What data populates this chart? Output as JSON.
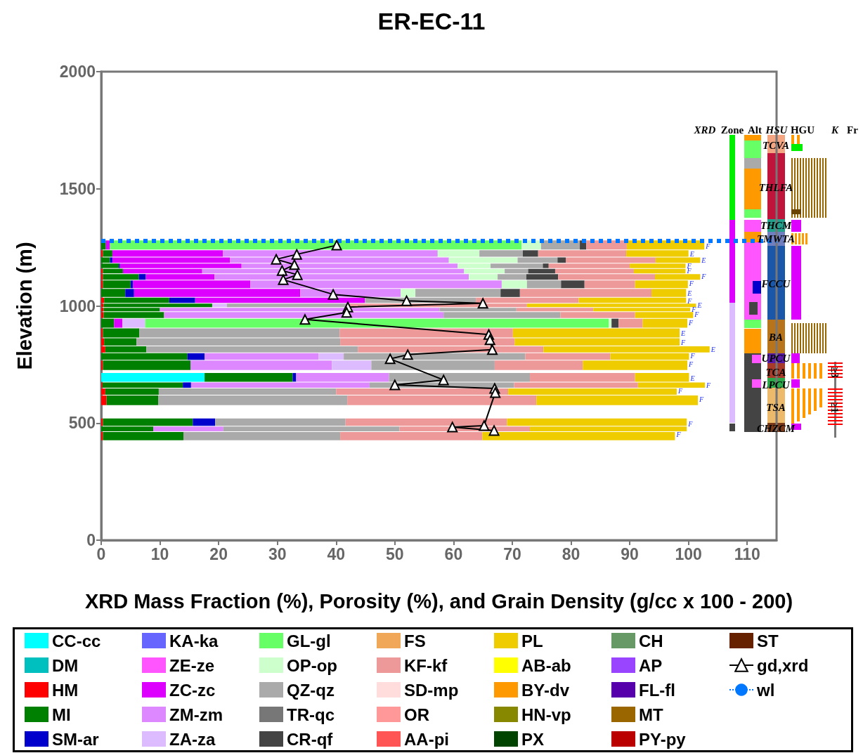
{
  "chart_data": {
    "type": "bar",
    "orientation": "horizontal",
    "stacked": true,
    "title": "ER-EC-11",
    "xlabel": "XRD Mass Fraction (%), Porosity (%), and Grain Density (g/cc x 100 - 200)",
    "ylabel": "Elevation (m)",
    "x": [
      1256,
      1222,
      1195,
      1170,
      1150,
      1125,
      1095,
      1053,
      1020,
      1002,
      985,
      965,
      929,
      882,
      845,
      813,
      786,
      750,
      690,
      660,
      638,
      600,
      496,
      477,
      450
    ],
    "xlim": [
      0,
      115
    ],
    "xticks": [
      0,
      10,
      20,
      30,
      40,
      50,
      60,
      70,
      80,
      90,
      100,
      110
    ],
    "ylim": [
      0,
      2000
    ],
    "yticks": [
      0,
      500,
      1000,
      1500,
      2000
    ],
    "legend": "bottom",
    "series": [
      {
        "name": "CC-cc",
        "color": "#00ffff",
        "values": [
          null,
          null,
          null,
          null,
          null,
          null,
          null,
          null,
          null,
          null,
          null,
          null,
          null,
          null,
          null,
          null,
          null,
          null,
          17.6,
          null,
          null,
          null,
          null,
          null,
          null
        ]
      },
      {
        "name": "DM",
        "color": "#00bfbf",
        "values": [
          null,
          null,
          null,
          null,
          null,
          null,
          null,
          null,
          null,
          null,
          null,
          null,
          null,
          null,
          null,
          null,
          null,
          null,
          null,
          null,
          null,
          null,
          null,
          null,
          null
        ]
      },
      {
        "name": "HM",
        "color": "#ff0000",
        "values": [
          null,
          0.3,
          null,
          null,
          0.3,
          0.3,
          0.3,
          null,
          0.5,
          0.4,
          0.4,
          0.4,
          null,
          0.3,
          0.5,
          0.7,
          null,
          0.3,
          null,
          0.2,
          0.7,
          0.9,
          0.3,
          null,
          0.3
        ]
      },
      {
        "name": "MI",
        "color": "#008000",
        "values": [
          0.8,
          1.6,
          1.5,
          3.0,
          3.4,
          6.1,
          4.7,
          4.1,
          11.1,
          18.5,
          9.6,
          10.3,
          2.2,
          6.2,
          5.5,
          7.0,
          14.7,
          14.9,
          15.0,
          13.7,
          9.1,
          8.8,
          15.3,
          8.9,
          13.7
        ]
      },
      {
        "name": "SM-ar",
        "color": "#0000cc",
        "values": [
          null,
          null,
          0.4,
          0.2,
          null,
          1.2,
          0.4,
          1.5,
          4.4,
          null,
          null,
          null,
          null,
          null,
          null,
          null,
          2.9,
          null,
          0.6,
          1.4,
          null,
          null,
          3.8,
          null,
          null
        ]
      },
      {
        "name": "KA-ka",
        "color": "#6666ff",
        "values": [
          null,
          null,
          null,
          null,
          null,
          null,
          null,
          null,
          null,
          null,
          null,
          null,
          null,
          null,
          null,
          null,
          null,
          null,
          null,
          null,
          null,
          null,
          null,
          null,
          null
        ]
      },
      {
        "name": "ZE-ze",
        "color": "#ff55ff",
        "values": [
          null,
          null,
          null,
          null,
          null,
          null,
          null,
          null,
          null,
          null,
          null,
          null,
          null,
          null,
          null,
          null,
          null,
          null,
          null,
          null,
          null,
          null,
          null,
          null,
          null
        ]
      },
      {
        "name": "ZC-zc",
        "color": "#dd00ff",
        "values": [
          0.7,
          18.8,
          20.0,
          20.7,
          13.5,
          11.7,
          20.0,
          28.3,
          28.9,
          null,
          null,
          null,
          1.4,
          null,
          null,
          null,
          null,
          null,
          null,
          null,
          null,
          null,
          null,
          null,
          null
        ]
      },
      {
        "name": "ZM-zm",
        "color": "#dd88ff",
        "values": [
          null,
          36.6,
          37.3,
          36.8,
          44.6,
          43.3,
          42.8,
          17.1,
          null,
          null,
          47.6,
          47.6,
          null,
          null,
          null,
          null,
          19.4,
          24.1,
          15.8,
          30.4,
          null,
          null,
          null,
          11.9,
          null
        ]
      },
      {
        "name": "ZA-za",
        "color": "#ddbbff",
        "values": [
          null,
          null,
          null,
          null,
          null,
          null,
          null,
          null,
          null,
          2.5,
          null,
          null,
          3.9,
          null,
          null,
          null,
          4.3,
          6.7,
          null,
          null,
          null,
          null,
          null,
          null,
          null
        ]
      },
      {
        "name": "GL-gl",
        "color": "#66ff66",
        "values": [
          70.1,
          null,
          null,
          null,
          null,
          null,
          null,
          null,
          null,
          null,
          null,
          null,
          78.9,
          null,
          null,
          null,
          null,
          null,
          null,
          null,
          null,
          null,
          null,
          null,
          null
        ]
      },
      {
        "name": "OP-op",
        "color": "#ccffcc",
        "values": [
          3.3,
          7.1,
          11.7,
          5.6,
          6.9,
          4.9,
          4.3,
          2.5,
          null,
          null,
          null,
          null,
          0.5,
          null,
          null,
          null,
          null,
          null,
          null,
          null,
          null,
          null,
          null,
          null,
          null
        ]
      },
      {
        "name": "QZ-qz",
        "color": "#aaaaaa",
        "values": [
          6.6,
          7.4,
          6.8,
          8.9,
          4.0,
          4.9,
          5.8,
          14.5,
          18.9,
          20.4,
          13.1,
          19.9,
          null,
          34.1,
          34.7,
          36.0,
          30.9,
          21.0,
          24.0,
          24.6,
          30.2,
          32.2,
          22.2,
          30.0,
          26.7
        ]
      },
      {
        "name": "TR-qc",
        "color": "#777777",
        "values": [
          null,
          null,
          null,
          null,
          null,
          null,
          null,
          null,
          null,
          null,
          null,
          null,
          null,
          null,
          null,
          null,
          null,
          null,
          null,
          null,
          null,
          null,
          null,
          null,
          null
        ]
      },
      {
        "name": "CR-qf",
        "color": "#444444",
        "values": [
          1.1,
          2.6,
          1.4,
          1.0,
          4.6,
          5.4,
          4.0,
          3.3,
          null,
          null,
          null,
          null,
          1.2,
          null,
          null,
          null,
          null,
          null,
          null,
          null,
          null,
          null,
          null,
          null,
          null
        ]
      },
      {
        "name": "FS",
        "color": "#f0a858",
        "values": [
          null,
          null,
          null,
          null,
          null,
          null,
          null,
          null,
          null,
          null,
          null,
          null,
          null,
          null,
          null,
          null,
          null,
          null,
          null,
          null,
          null,
          null,
          null,
          null,
          null
        ]
      },
      {
        "name": "KF-kf",
        "color": "#ee9999",
        "values": [
          6.9,
          15.0,
          15.3,
          13.8,
          13.4,
          16.5,
          8.6,
          22.4,
          17.5,
          30.7,
          13.1,
          12.7,
          4.1,
          29.5,
          29.7,
          31.6,
          14.5,
          15.0,
          17.9,
          21.1,
          29.3,
          32.2,
          27.5,
          22.2,
          24.2
        ]
      },
      {
        "name": "SD-mp",
        "color": "#ffdddd",
        "values": [
          null,
          null,
          null,
          null,
          null,
          null,
          null,
          null,
          null,
          null,
          null,
          null,
          null,
          null,
          null,
          null,
          null,
          null,
          null,
          null,
          null,
          null,
          null,
          null,
          null
        ]
      },
      {
        "name": "OR",
        "color": "#ff9999",
        "values": [
          null,
          null,
          null,
          null,
          null,
          null,
          null,
          null,
          null,
          null,
          null,
          null,
          null,
          null,
          null,
          null,
          null,
          null,
          null,
          null,
          null,
          null,
          null,
          null,
          null
        ]
      },
      {
        "name": "AA-pi",
        "color": "#ff5555",
        "values": [
          null,
          null,
          null,
          null,
          null,
          null,
          null,
          null,
          null,
          null,
          null,
          null,
          null,
          null,
          null,
          null,
          null,
          null,
          null,
          null,
          null,
          null,
          null,
          null,
          null
        ]
      },
      {
        "name": "PL",
        "color": "#eecc00",
        "values": [
          13.2,
          10.6,
          7.6,
          9.5,
          8.8,
          7.7,
          9.0,
          5.9,
          18.3,
          28.8,
          16.5,
          9.9,
          7.6,
          28.4,
          28.1,
          28.3,
          13.4,
          17.8,
          9.2,
          11.4,
          28.7,
          27.5,
          30.6,
          26.7,
          32.8
        ],
        "value_labels": [
          "F",
          "E",
          "E",
          "F",
          "F",
          "F",
          "F",
          "E",
          "F",
          "E",
          "F",
          "F",
          "F",
          "E",
          "F",
          "E",
          "F",
          "F",
          "E",
          "F",
          "F",
          "F",
          "F",
          null,
          "F"
        ]
      },
      {
        "name": "AB-ab",
        "color": "#ffff00",
        "values": [
          null,
          null,
          null,
          null,
          null,
          null,
          null,
          null,
          null,
          null,
          null,
          null,
          null,
          null,
          null,
          null,
          null,
          null,
          null,
          null,
          null,
          null,
          null,
          null,
          null
        ]
      },
      {
        "name": "BY-dv",
        "color": "#ff9900",
        "values": [
          null,
          null,
          null,
          null,
          null,
          null,
          null,
          null,
          null,
          null,
          null,
          null,
          null,
          null,
          null,
          null,
          null,
          null,
          null,
          null,
          null,
          null,
          null,
          null,
          null
        ]
      },
      {
        "name": "HN-vp",
        "color": "#888800",
        "values": [
          null,
          null,
          null,
          null,
          null,
          null,
          null,
          null,
          null,
          null,
          null,
          null,
          null,
          null,
          null,
          null,
          null,
          null,
          null,
          null,
          null,
          null,
          null,
          null,
          null
        ]
      },
      {
        "name": "PX",
        "color": "#004400",
        "values": [
          null,
          null,
          null,
          null,
          null,
          null,
          null,
          null,
          null,
          null,
          null,
          null,
          null,
          null,
          null,
          null,
          null,
          null,
          null,
          null,
          null,
          null,
          null,
          null,
          null
        ]
      },
      {
        "name": "CH",
        "color": "#669966",
        "values": [
          null,
          null,
          null,
          null,
          null,
          null,
          null,
          null,
          null,
          null,
          null,
          null,
          null,
          null,
          null,
          null,
          null,
          null,
          null,
          null,
          null,
          null,
          null,
          null,
          null
        ]
      },
      {
        "name": "AP",
        "color": "#9944ff",
        "values": [
          null,
          null,
          null,
          null,
          null,
          null,
          null,
          null,
          null,
          null,
          null,
          null,
          null,
          null,
          null,
          null,
          null,
          null,
          null,
          null,
          null,
          null,
          null,
          null,
          null
        ]
      },
      {
        "name": "FL-fl",
        "color": "#5500aa",
        "values": [
          null,
          null,
          null,
          null,
          null,
          null,
          null,
          null,
          null,
          null,
          null,
          null,
          null,
          null,
          null,
          null,
          null,
          null,
          null,
          null,
          null,
          null,
          null,
          null,
          null
        ]
      },
      {
        "name": "MT",
        "color": "#996600",
        "values": [
          null,
          null,
          null,
          null,
          null,
          null,
          null,
          null,
          null,
          null,
          null,
          null,
          null,
          null,
          null,
          null,
          null,
          null,
          null,
          null,
          null,
          null,
          null,
          null,
          null
        ]
      },
      {
        "name": "PY-py",
        "color": "#bb0000",
        "values": [
          null,
          null,
          null,
          null,
          null,
          null,
          null,
          null,
          null,
          null,
          null,
          null,
          null,
          null,
          null,
          null,
          null,
          null,
          null,
          null,
          null,
          null,
          null,
          null,
          null
        ]
      },
      {
        "name": "ST",
        "color": "#662200",
        "values": [
          null,
          null,
          null,
          null,
          null,
          null,
          null,
          null,
          null,
          null,
          null,
          null,
          null,
          null,
          null,
          null,
          null,
          null,
          null,
          null,
          null,
          null,
          null,
          null,
          null
        ]
      },
      {
        "name": "gd,xrd",
        "type": "line",
        "color": "#000000",
        "marker": "triangle",
        "line_style": "solid",
        "x": [
          1259,
          1220,
          1199,
          1176,
          1151,
          1133,
          1112,
          1049,
          1022,
          1011,
          995,
          972,
          942,
          878,
          855,
          813,
          792,
          774,
          684,
          663,
          648,
          630,
          489,
          483,
          468
        ],
        "values": [
          40.1,
          33.3,
          29.8,
          32.9,
          30.8,
          33.4,
          31.0,
          39.5,
          52.0,
          65.0,
          42.0,
          41.8,
          34.7,
          66.0,
          66.2,
          66.6,
          52.2,
          49.2,
          58.3,
          50.0,
          67.0,
          67.1,
          65.2,
          59.8,
          66.9
        ]
      }
    ],
    "ref_lines": [
      {
        "axis": "y",
        "value": 1277,
        "label": "wl",
        "color": "#0077ff",
        "line_style": "dotted"
      }
    ],
    "annotations": [
      "XRD",
      "Zone",
      "Alt",
      "HSU",
      "HGU",
      "K",
      "Fr",
      "≥3",
      "≥1",
      "TCVA",
      "THLFA",
      "THCM",
      "TMWTA",
      "FCCU",
      "BA",
      "UPCU",
      "TCA",
      "LPCU",
      "TSA",
      "CHZCM"
    ]
  }
}
